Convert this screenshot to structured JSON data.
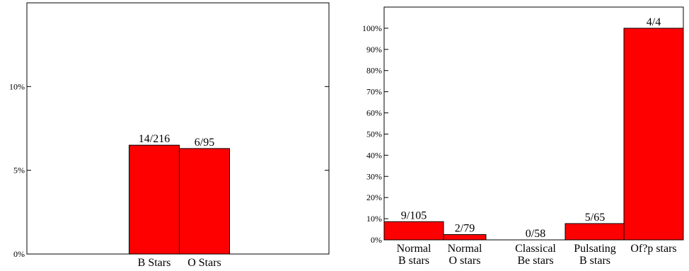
{
  "chart_data": [
    {
      "type": "bar",
      "title": "",
      "xlabel": "",
      "ylabel": "",
      "ylim": [
        0,
        15
      ],
      "yticks": [
        0,
        5,
        10
      ],
      "ytick_labels": [
        "0%",
        "5%",
        "10%"
      ],
      "categories": [
        "B Stars",
        "O Stars"
      ],
      "values": [
        6.5,
        6.3
      ],
      "data_labels": [
        "14/216",
        "6/95"
      ],
      "bar_color": "#ff0000",
      "grid": false
    },
    {
      "type": "bar",
      "title": "",
      "xlabel": "",
      "ylabel": "",
      "ylim": [
        0,
        110
      ],
      "yticks": [
        0,
        10,
        20,
        30,
        40,
        50,
        60,
        70,
        80,
        90,
        100
      ],
      "ytick_labels": [
        "0%",
        "10%",
        "20%",
        "30%",
        "40%",
        "50%",
        "60%",
        "70%",
        "80%",
        "90%",
        "100%"
      ],
      "categories": [
        [
          "Normal",
          "B stars"
        ],
        [
          "Normal",
          "O stars"
        ],
        [
          "Classical",
          "Be stars"
        ],
        [
          "Pulsating",
          "B stars"
        ],
        [
          "Of?p stars"
        ]
      ],
      "values": [
        8.6,
        2.5,
        0,
        7.7,
        100
      ],
      "data_labels": [
        "9/105",
        "2/79",
        "0/58",
        "5/65",
        "4/4"
      ],
      "bar_color": "#ff0000",
      "grid": false
    }
  ]
}
